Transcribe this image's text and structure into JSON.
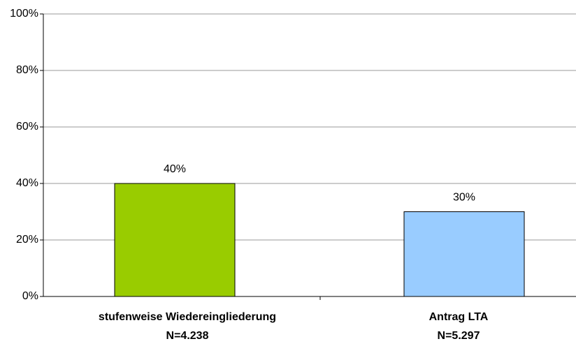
{
  "chart_data": {
    "type": "bar",
    "categories": [
      [
        "stufenweise Wiedereingliederung",
        "N=4.238"
      ],
      [
        "Antrag LTA",
        "N=5.297"
      ]
    ],
    "values": [
      40,
      30
    ],
    "value_labels": [
      "40%",
      "30%"
    ],
    "colors": [
      "#99cc00",
      "#99ccff"
    ],
    "ylim": [
      0,
      100
    ],
    "yticks": [
      {
        "value": 0,
        "label": "0%"
      },
      {
        "value": 20,
        "label": "20%"
      },
      {
        "value": 40,
        "label": "40%"
      },
      {
        "value": 60,
        "label": "60%"
      },
      {
        "value": 80,
        "label": "80%"
      },
      {
        "value": 100,
        "label": "100%"
      }
    ],
    "grid": true
  }
}
